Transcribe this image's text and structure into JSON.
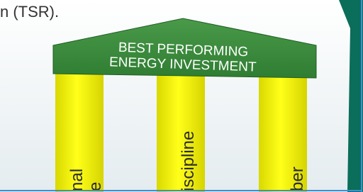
{
  "intro_text": "n (TSR).",
  "roof": {
    "lines": [
      "BEST PERFORMING",
      "ENERGY INVESTMENT"
    ]
  },
  "pillars": [
    {
      "lines": [
        "nal",
        "e"
      ]
    },
    {
      "lines": [
        "iscipline"
      ]
    },
    {
      "lines": [
        "ber"
      ]
    }
  ]
}
